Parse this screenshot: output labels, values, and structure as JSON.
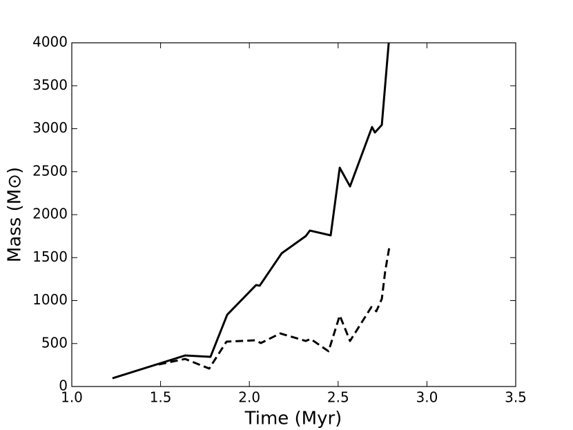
{
  "chart_data": {
    "type": "line",
    "xlabel": "Time (Myr)",
    "ylabel": "Mass (M⊙)",
    "xlim": [
      1.0,
      3.5
    ],
    "ylim": [
      0,
      4000
    ],
    "xticks": [
      {
        "value": 1.0,
        "label": "1.0"
      },
      {
        "value": 1.5,
        "label": "1.5"
      },
      {
        "value": 2.0,
        "label": "2.0"
      },
      {
        "value": 2.5,
        "label": "2.5"
      },
      {
        "value": 3.0,
        "label": "3.0"
      },
      {
        "value": 3.5,
        "label": "3.5"
      }
    ],
    "yticks": [
      0,
      500,
      1000,
      1500,
      2000,
      2500,
      3000,
      3500,
      4000
    ],
    "series": [
      {
        "color": "#000000",
        "linestyle": "solid",
        "x": [
          1.229,
          1.638,
          1.781,
          1.875,
          2.038,
          2.058,
          2.182,
          2.318,
          2.341,
          2.458,
          2.509,
          2.567,
          2.691,
          2.707,
          2.746,
          2.785
        ],
        "values": [
          96,
          361,
          345,
          835,
          1181,
          1173,
          1550,
          1751,
          1815,
          1759,
          2546,
          2329,
          3020,
          2956,
          3044,
          4000
        ]
      },
      {
        "color": "#000000",
        "linestyle": "dashed",
        "x": [
          1.49,
          1.638,
          1.774,
          1.871,
          2.034,
          2.065,
          2.174,
          2.318,
          2.345,
          2.446,
          2.509,
          2.567,
          2.687,
          2.715,
          2.746,
          2.765,
          2.789
        ],
        "values": [
          257,
          321,
          209,
          522,
          538,
          506,
          618,
          530,
          554,
          410,
          827,
          530,
          924,
          876,
          1020,
          1341,
          1631
        ]
      }
    ]
  }
}
